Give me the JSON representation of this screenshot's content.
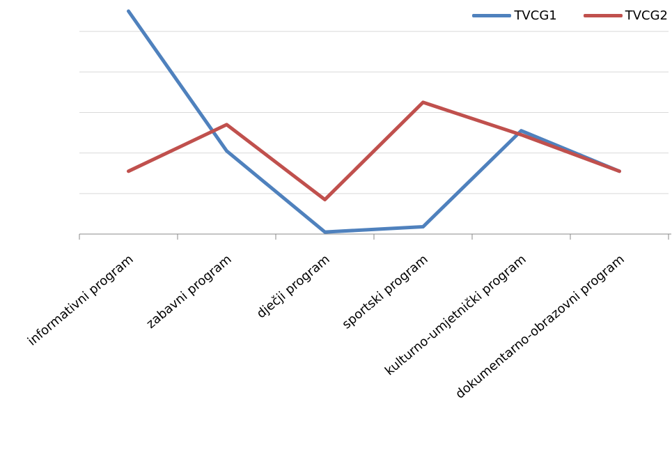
{
  "chart_data": {
    "type": "line",
    "categories": [
      "informativni program",
      "zabavni program",
      "dječji program",
      "sportski program",
      "kulturno-umjetnički program",
      "dokumentarno-obrazovni program"
    ],
    "series": [
      {
        "name": "TVCG1",
        "color": "#4F81BD",
        "values": [
          5.5,
          2.05,
          0.05,
          0.18,
          2.55,
          1.55
        ]
      },
      {
        "name": "TVCG2",
        "color": "#C0504D",
        "values": [
          1.55,
          2.7,
          0.85,
          3.25,
          2.45,
          1.55
        ]
      }
    ],
    "ylim": [
      0,
      5.5
    ],
    "y_gridlines": [
      1,
      2,
      3,
      4,
      5
    ],
    "grid": true,
    "legend_position": "top-right",
    "title": "",
    "xlabel": "",
    "ylabel": ""
  }
}
